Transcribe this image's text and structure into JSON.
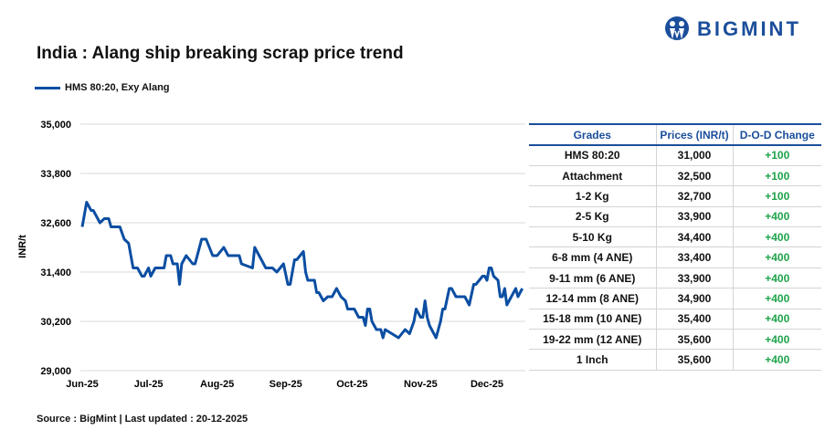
{
  "title": "India : Alang ship breaking scrap price trend",
  "brand": {
    "name": "BIGMINT",
    "color": "#1b4e9b"
  },
  "source": "Source : BigMint | Last updated : 20-12-2025",
  "chart_data": {
    "type": "line",
    "title": "India : Alang ship breaking scrap price trend",
    "ylabel": "INR/t",
    "xlabel": "",
    "ylim": [
      29000,
      35000
    ],
    "yticks": [
      "35,000",
      "33,800",
      "32,600",
      "31,400",
      "30,200",
      "29,000"
    ],
    "ytick_values": [
      35000,
      33800,
      32600,
      31400,
      30200,
      29000
    ],
    "xticks": [
      "Jun-25",
      "Jul-25",
      "Aug-25",
      "Sep-25",
      "Oct-25",
      "Nov-25",
      "Dec-25"
    ],
    "xtick_dates": [
      "2025-06-01",
      "2025-07-01",
      "2025-08-01",
      "2025-09-01",
      "2025-10-01",
      "2025-11-01",
      "2025-12-01"
    ],
    "grid": "horizontal",
    "legend": "top-left",
    "series": [
      {
        "name": "HMS 80:20, Exy Alang",
        "color": "#0b4ea2",
        "points": [
          [
            "2025-06-01",
            32500
          ],
          [
            "2025-06-03",
            33100
          ],
          [
            "2025-06-05",
            32900
          ],
          [
            "2025-06-06",
            32900
          ],
          [
            "2025-06-09",
            32600
          ],
          [
            "2025-06-11",
            32700
          ],
          [
            "2025-06-13",
            32700
          ],
          [
            "2025-06-14",
            32500
          ],
          [
            "2025-06-18",
            32500
          ],
          [
            "2025-06-20",
            32200
          ],
          [
            "2025-06-22",
            32100
          ],
          [
            "2025-06-24",
            31500
          ],
          [
            "2025-06-26",
            31500
          ],
          [
            "2025-06-28",
            31300
          ],
          [
            "2025-06-29",
            31300
          ],
          [
            "2025-07-01",
            31500
          ],
          [
            "2025-07-02",
            31300
          ],
          [
            "2025-07-04",
            31500
          ],
          [
            "2025-07-08",
            31500
          ],
          [
            "2025-07-09",
            31800
          ],
          [
            "2025-07-11",
            31800
          ],
          [
            "2025-07-12",
            31600
          ],
          [
            "2025-07-14",
            31600
          ],
          [
            "2025-07-15",
            31100
          ],
          [
            "2025-07-16",
            31600
          ],
          [
            "2025-07-18",
            31800
          ],
          [
            "2025-07-21",
            31600
          ],
          [
            "2025-07-22",
            31600
          ],
          [
            "2025-07-25",
            32200
          ],
          [
            "2025-07-27",
            32200
          ],
          [
            "2025-07-30",
            31800
          ],
          [
            "2025-08-01",
            31800
          ],
          [
            "2025-08-04",
            32000
          ],
          [
            "2025-08-06",
            31800
          ],
          [
            "2025-08-11",
            31800
          ],
          [
            "2025-08-12",
            31600
          ],
          [
            "2025-08-17",
            31500
          ],
          [
            "2025-08-18",
            32000
          ],
          [
            "2025-08-19",
            31900
          ],
          [
            "2025-08-21",
            31700
          ],
          [
            "2025-08-23",
            31500
          ],
          [
            "2025-08-26",
            31500
          ],
          [
            "2025-08-28",
            31400
          ],
          [
            "2025-08-31",
            31600
          ],
          [
            "2025-09-02",
            31100
          ],
          [
            "2025-09-03",
            31100
          ],
          [
            "2025-09-05",
            31700
          ],
          [
            "2025-09-06",
            31700
          ],
          [
            "2025-09-09",
            31900
          ],
          [
            "2025-09-10",
            31400
          ],
          [
            "2025-09-11",
            31200
          ],
          [
            "2025-09-14",
            31200
          ],
          [
            "2025-09-15",
            30900
          ],
          [
            "2025-09-16",
            30900
          ],
          [
            "2025-09-18",
            30700
          ],
          [
            "2025-09-20",
            30800
          ],
          [
            "2025-09-22",
            30800
          ],
          [
            "2025-09-24",
            31000
          ],
          [
            "2025-09-26",
            30800
          ],
          [
            "2025-09-28",
            30700
          ],
          [
            "2025-09-29",
            30500
          ],
          [
            "2025-10-02",
            30500
          ],
          [
            "2025-10-04",
            30300
          ],
          [
            "2025-10-06",
            30300
          ],
          [
            "2025-10-07",
            30100
          ],
          [
            "2025-10-08",
            30500
          ],
          [
            "2025-10-09",
            30500
          ],
          [
            "2025-10-10",
            30200
          ],
          [
            "2025-10-12",
            30000
          ],
          [
            "2025-10-14",
            30000
          ],
          [
            "2025-10-15",
            29800
          ],
          [
            "2025-10-16",
            30000
          ],
          [
            "2025-10-19",
            29900
          ],
          [
            "2025-10-22",
            29800
          ],
          [
            "2025-10-25",
            30000
          ],
          [
            "2025-10-27",
            29900
          ],
          [
            "2025-10-29",
            30200
          ],
          [
            "2025-10-30",
            30500
          ],
          [
            "2025-11-01",
            30300
          ],
          [
            "2025-11-02",
            30300
          ],
          [
            "2025-11-03",
            30700
          ],
          [
            "2025-11-04",
            30300
          ],
          [
            "2025-11-05",
            30100
          ],
          [
            "2025-11-08",
            29800
          ],
          [
            "2025-11-10",
            30200
          ],
          [
            "2025-11-11",
            30500
          ],
          [
            "2025-11-12",
            30500
          ],
          [
            "2025-11-14",
            31000
          ],
          [
            "2025-11-15",
            31000
          ],
          [
            "2025-11-17",
            30800
          ],
          [
            "2025-11-21",
            30800
          ],
          [
            "2025-11-23",
            30600
          ],
          [
            "2025-11-25",
            31100
          ],
          [
            "2025-11-26",
            31100
          ],
          [
            "2025-11-29",
            31300
          ],
          [
            "2025-11-30",
            31300
          ],
          [
            "2025-12-01",
            31200
          ],
          [
            "2025-12-02",
            31500
          ],
          [
            "2025-12-03",
            31500
          ],
          [
            "2025-12-04",
            31300
          ],
          [
            "2025-12-06",
            31200
          ],
          [
            "2025-12-07",
            30800
          ],
          [
            "2025-12-08",
            30800
          ],
          [
            "2025-12-09",
            31000
          ],
          [
            "2025-12-10",
            30600
          ],
          [
            "2025-12-14",
            31000
          ],
          [
            "2025-12-15",
            30800
          ],
          [
            "2025-12-17",
            31000
          ]
        ]
      }
    ]
  },
  "table": {
    "headers": [
      "Grades",
      "Prices (INR/t)",
      "D-O-D Change"
    ],
    "rows": [
      [
        "HMS 80:20",
        "31,000",
        "+100"
      ],
      [
        "Attachment",
        "32,500",
        "+100"
      ],
      [
        "1-2 Kg",
        "32,700",
        "+100"
      ],
      [
        "2-5 Kg",
        "33,900",
        "+400"
      ],
      [
        "5-10 Kg",
        "34,400",
        "+400"
      ],
      [
        "6-8 mm (4 ANE)",
        "33,400",
        "+400"
      ],
      [
        "9-11 mm (6 ANE)",
        "33,900",
        "+400"
      ],
      [
        "12-14 mm (8 ANE)",
        "34,900",
        "+400"
      ],
      [
        "15-18 mm (10 ANE)",
        "35,400",
        "+400"
      ],
      [
        "19-22 mm (12 ANE)",
        "35,600",
        "+400"
      ],
      [
        "1 Inch",
        "35,600",
        "+400"
      ]
    ],
    "header_color": "#1b4e9b",
    "change_color": "#1ea34a"
  }
}
